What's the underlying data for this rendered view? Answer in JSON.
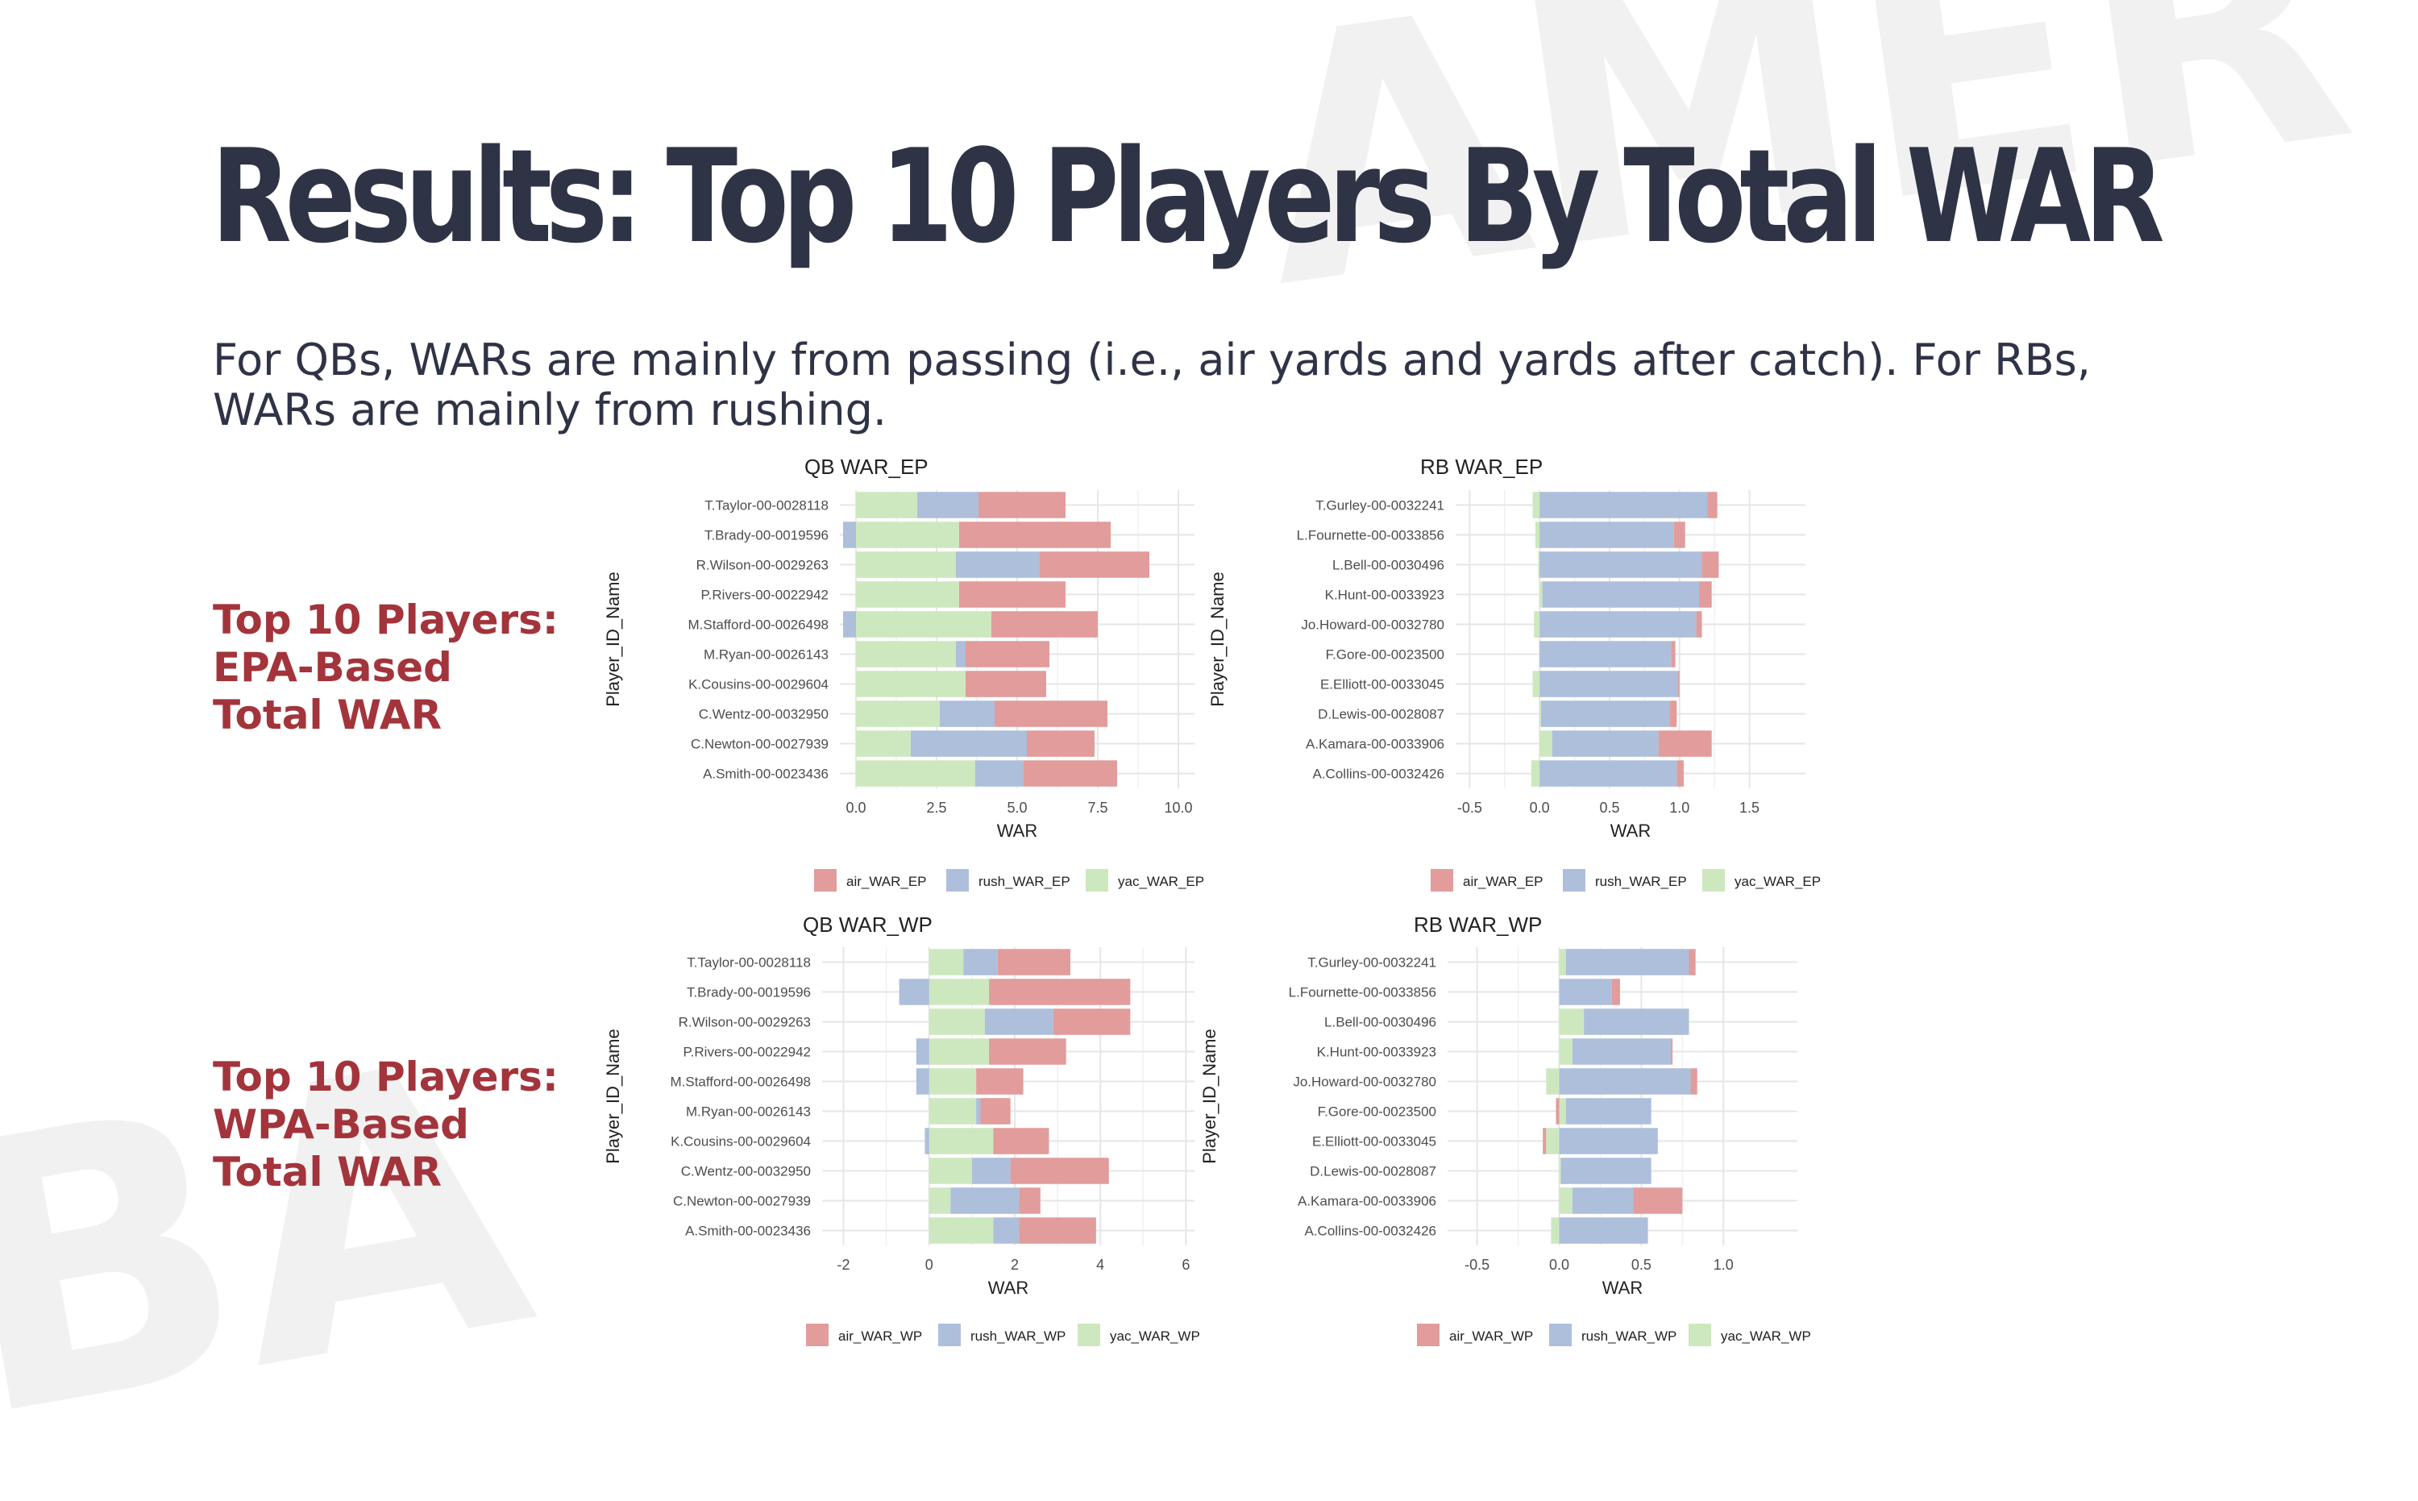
{
  "slide": {
    "title": "Results: Top 10 Players By Total WAR",
    "subtitle": "For QBs, WARs are mainly from passing (i.e., air yards and yards after catch). For RBs, WARs are mainly from rushing.",
    "epa_label": [
      "Top 10 Players:",
      "EPA-Based",
      "Total WAR"
    ],
    "wpa_label": [
      "Top 10 Players:",
      "WPA-Based",
      "Total WAR"
    ],
    "watermark_top": "AMER",
    "watermark_bottom": "BA"
  },
  "colors": {
    "air": "#e29c9c",
    "rush": "#adbfdb",
    "yac": "#cde8bf",
    "title": "#2f3346",
    "label": "#a3343b"
  },
  "chart_data": [
    {
      "id": "qb_ep",
      "type": "bar",
      "orientation": "horizontal",
      "stacked": "diverging",
      "title": "QB WAR_EP",
      "xlabel": "WAR",
      "ylabel": "Player_ID_Name",
      "xlim": [
        -0.5,
        10.5
      ],
      "xticks": [
        0,
        2.5,
        5,
        7.5,
        10
      ],
      "xtick_labels": [
        "0.0",
        "2.5",
        "5.0",
        "7.5",
        "10.0"
      ],
      "categories": [
        "T.Taylor-00-0028118",
        "T.Brady-00-0019596",
        "R.Wilson-00-0029263",
        "P.Rivers-00-0022942",
        "M.Stafford-00-0026498",
        "M.Ryan-00-0026143",
        "K.Cousins-00-0029604",
        "C.Wentz-00-0032950",
        "C.Newton-00-0027939",
        "A.Smith-00-0023436"
      ],
      "series": [
        {
          "name": "air_WAR_EP",
          "key": "air",
          "values": [
            2.7,
            4.7,
            3.4,
            3.3,
            3.3,
            2.6,
            2.5,
            3.5,
            2.1,
            2.9
          ]
        },
        {
          "name": "rush_WAR_EP",
          "key": "rush",
          "values": [
            1.9,
            -0.4,
            2.6,
            0,
            -0.4,
            0.3,
            0,
            1.7,
            3.6,
            1.5
          ]
        },
        {
          "name": "yac_WAR_EP",
          "key": "yac",
          "values": [
            1.9,
            3.2,
            3.1,
            3.2,
            4.2,
            3.1,
            3.4,
            2.6,
            1.7,
            3.7
          ]
        }
      ],
      "legend_position": "bottom"
    },
    {
      "id": "rb_ep",
      "type": "bar",
      "orientation": "horizontal",
      "stacked": "diverging",
      "title": "RB WAR_EP",
      "xlabel": "WAR",
      "ylabel": "Player_ID_Name",
      "xlim": [
        -0.6,
        1.9
      ],
      "xticks": [
        -0.5,
        0,
        0.5,
        1,
        1.5
      ],
      "xtick_labels": [
        "-0.5",
        "0.0",
        "0.5",
        "1.0",
        "1.5"
      ],
      "categories": [
        "T.Gurley-00-0032241",
        "L.Fournette-00-0033856",
        "L.Bell-00-0030496",
        "K.Hunt-00-0033923",
        "Jo.Howard-00-0032780",
        "F.Gore-00-0023500",
        "E.Elliott-00-0033045",
        "D.Lewis-00-0028087",
        "A.Kamara-00-0033906",
        "A.Collins-00-0032426"
      ],
      "series": [
        {
          "name": "air_WAR_EP",
          "key": "air",
          "values": [
            0.07,
            0.08,
            0.12,
            0.09,
            0.04,
            0.03,
            0.01,
            0.05,
            0.38,
            0.05
          ]
        },
        {
          "name": "rush_WAR_EP",
          "key": "rush",
          "values": [
            1.2,
            0.96,
            1.16,
            1.12,
            1.12,
            0.94,
            0.99,
            0.92,
            0.76,
            0.98
          ]
        },
        {
          "name": "yac_WAR_EP",
          "key": "yac",
          "values": [
            -0.05,
            -0.03,
            -0.01,
            0.02,
            -0.04,
            0,
            -0.05,
            0.01,
            0.09,
            -0.06
          ]
        }
      ],
      "legend_position": "bottom"
    },
    {
      "id": "qb_wp",
      "type": "bar",
      "orientation": "horizontal",
      "stacked": "diverging",
      "title": "QB WAR_WP",
      "xlabel": "WAR",
      "ylabel": "Player_ID_Name",
      "xlim": [
        -2.5,
        6.2
      ],
      "xticks": [
        -2,
        0,
        2,
        4,
        6
      ],
      "xtick_labels": [
        "-2",
        "0",
        "2",
        "4",
        "6"
      ],
      "categories": [
        "T.Taylor-00-0028118",
        "T.Brady-00-0019596",
        "R.Wilson-00-0029263",
        "P.Rivers-00-0022942",
        "M.Stafford-00-0026498",
        "M.Ryan-00-0026143",
        "K.Cousins-00-0029604",
        "C.Wentz-00-0032950",
        "C.Newton-00-0027939",
        "A.Smith-00-0023436"
      ],
      "series": [
        {
          "name": "air_WAR_WP",
          "key": "air",
          "values": [
            1.7,
            3.3,
            1.8,
            1.8,
            1.1,
            0.7,
            1.3,
            2.3,
            0.5,
            1.8
          ]
        },
        {
          "name": "rush_WAR_WP",
          "key": "rush",
          "values": [
            0.8,
            -0.7,
            1.6,
            -0.3,
            -0.3,
            0.1,
            -0.1,
            0.9,
            1.6,
            0.6
          ]
        },
        {
          "name": "yac_WAR_WP",
          "key": "yac",
          "values": [
            0.8,
            1.4,
            1.3,
            1.4,
            1.1,
            1.1,
            1.5,
            1.0,
            0.5,
            1.5
          ]
        }
      ],
      "legend_position": "bottom"
    },
    {
      "id": "rb_wp",
      "type": "bar",
      "orientation": "horizontal",
      "stacked": "diverging",
      "title": "RB WAR_WP",
      "xlabel": "WAR",
      "ylabel": "Player_ID_Name",
      "xlim": [
        -0.68,
        1.45
      ],
      "xticks": [
        -0.5,
        0,
        0.5,
        1
      ],
      "xtick_labels": [
        "-0.5",
        "0.0",
        "0.5",
        "1.0"
      ],
      "categories": [
        "T.Gurley-00-0032241",
        "L.Fournette-00-0033856",
        "L.Bell-00-0030496",
        "K.Hunt-00-0033923",
        "Jo.Howard-00-0032780",
        "F.Gore-00-0023500",
        "E.Elliott-00-0033045",
        "D.Lewis-00-0028087",
        "A.Kamara-00-0033906",
        "A.Collins-00-0032426"
      ],
      "series": [
        {
          "name": "air_WAR_WP",
          "key": "air",
          "values": [
            0.04,
            0.05,
            0,
            0.01,
            0.04,
            -0.02,
            -0.02,
            0,
            0.3,
            0
          ]
        },
        {
          "name": "rush_WAR_WP",
          "key": "rush",
          "values": [
            0.75,
            0.32,
            0.64,
            0.6,
            0.8,
            0.52,
            0.6,
            0.55,
            0.37,
            0.54
          ]
        },
        {
          "name": "yac_WAR_WP",
          "key": "yac",
          "values": [
            0.04,
            0,
            0.15,
            0.08,
            -0.08,
            0.04,
            -0.08,
            0.01,
            0.08,
            -0.05
          ]
        }
      ],
      "legend_position": "bottom"
    }
  ]
}
